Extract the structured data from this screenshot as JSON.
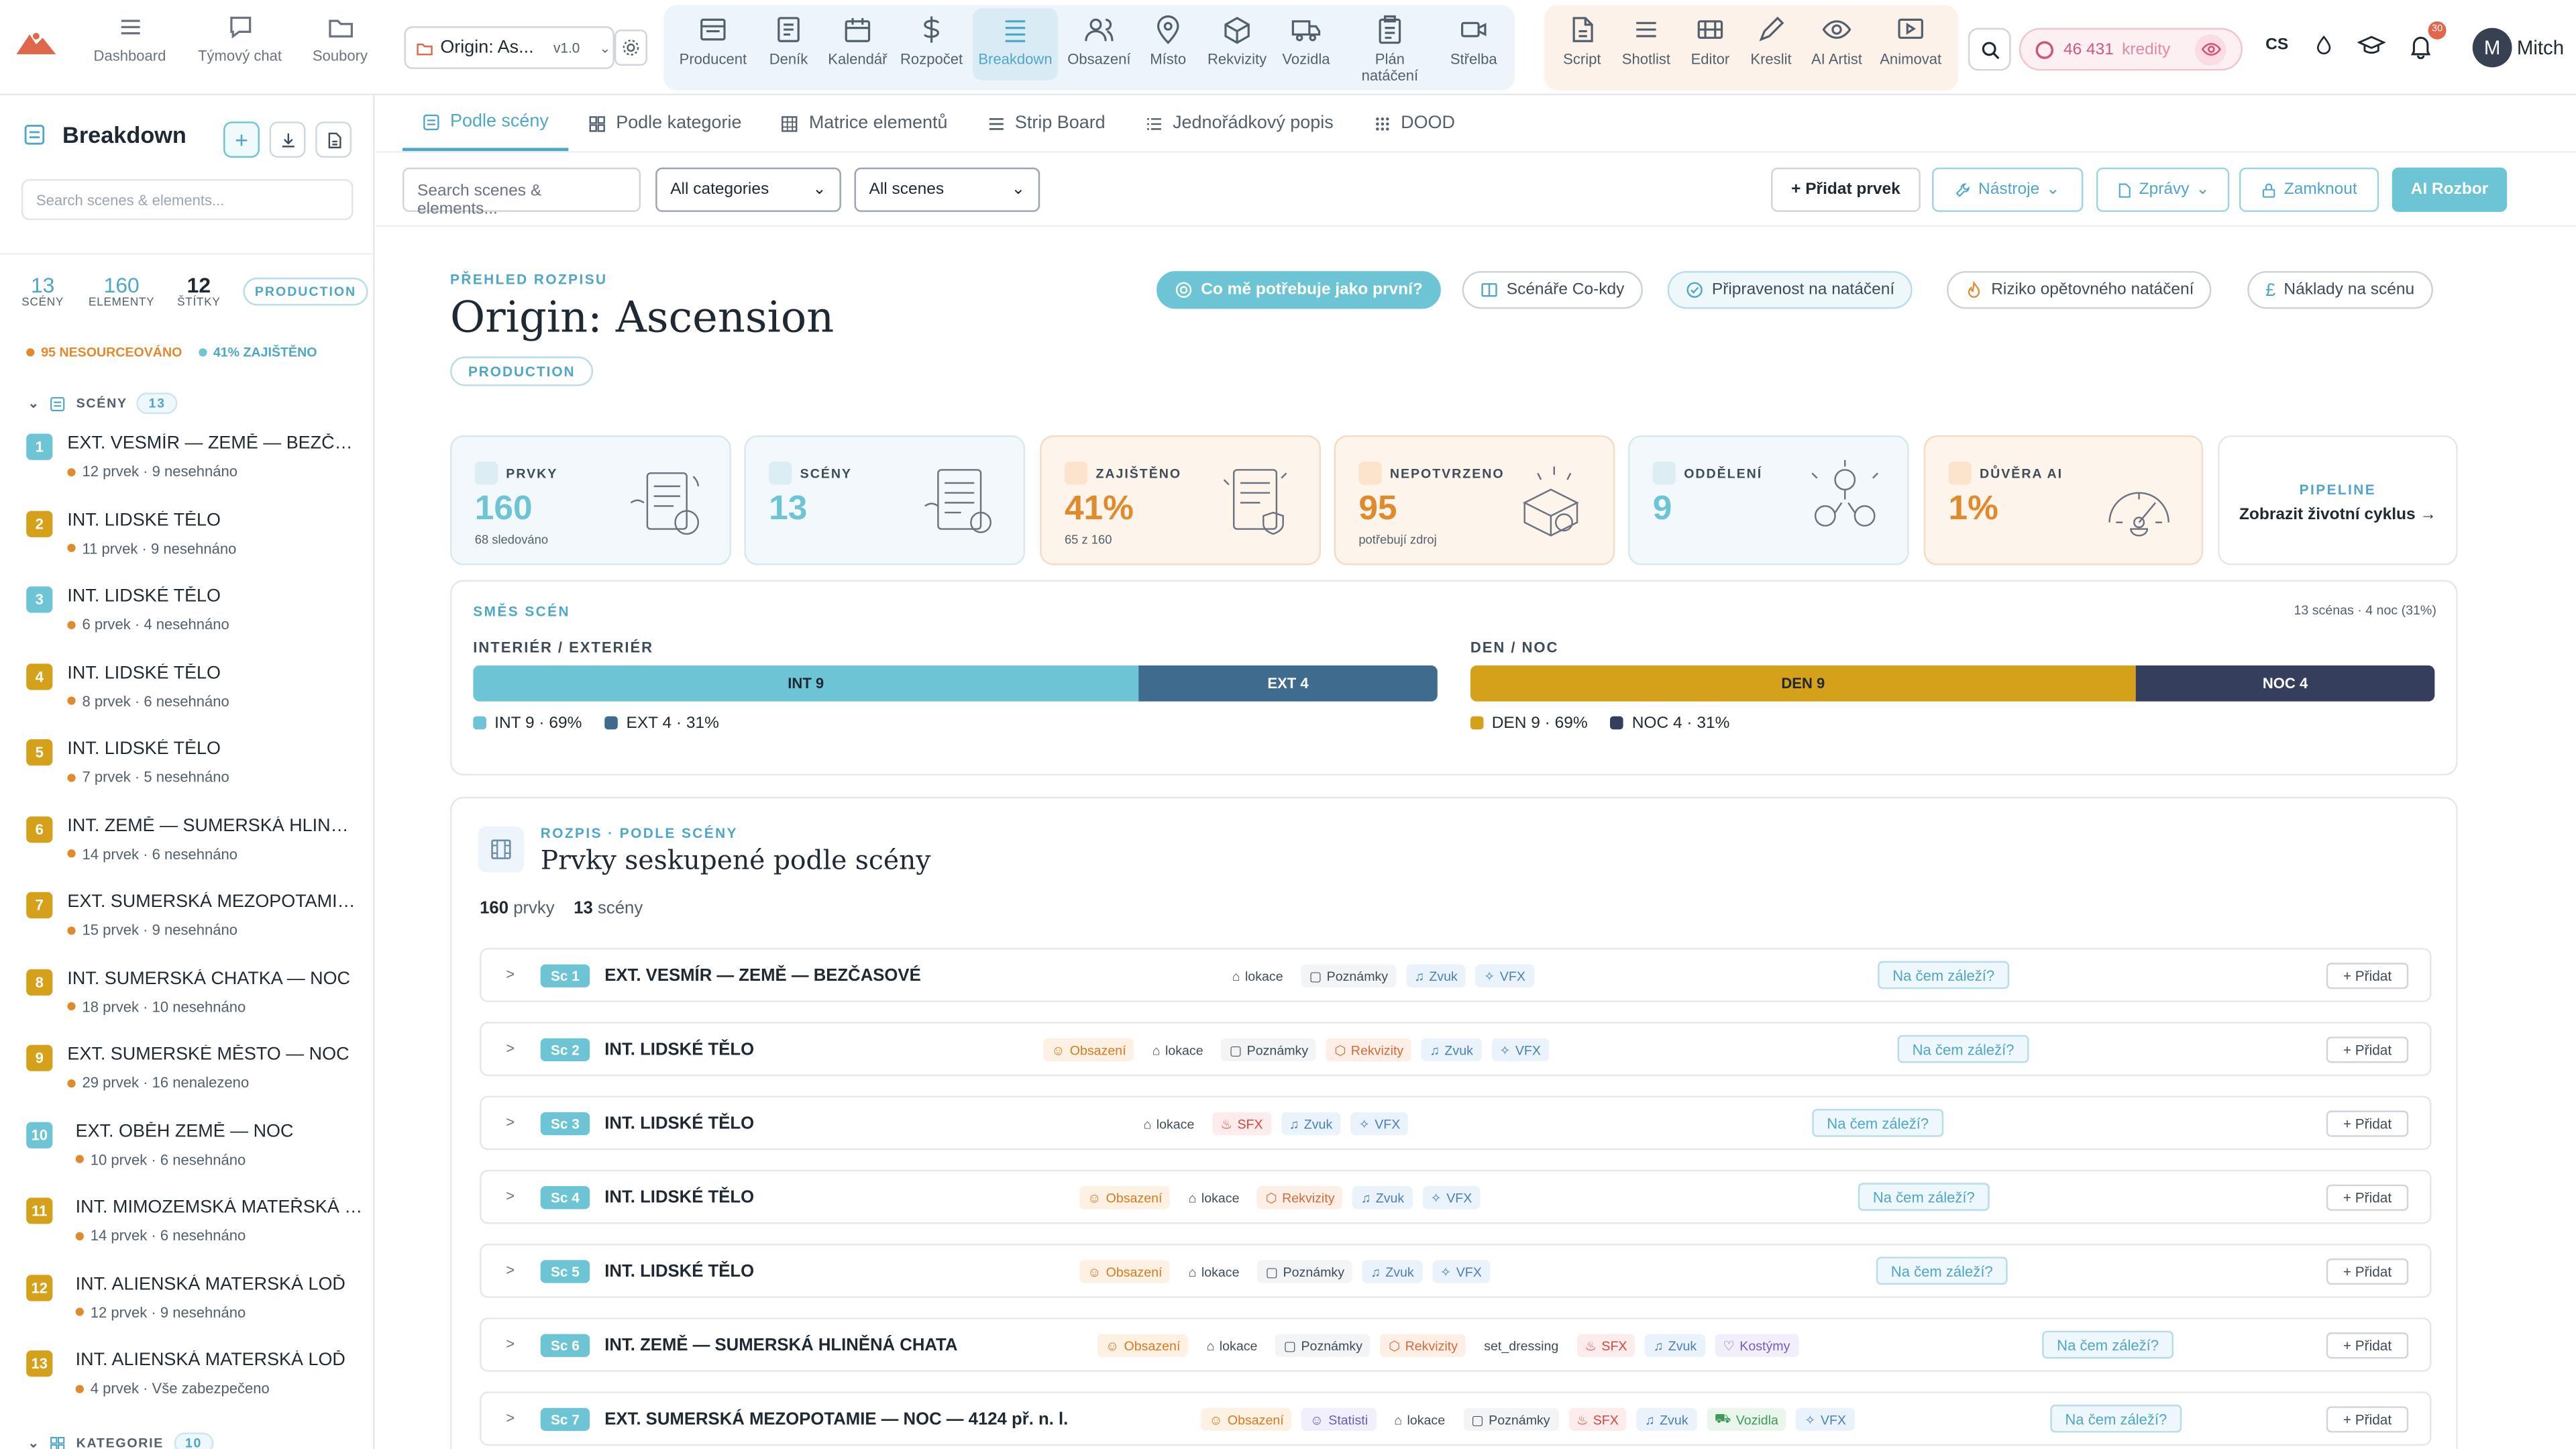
{
  "topnav": {
    "items": [
      {
        "label": "Dashboard",
        "icon": "menu-icon"
      },
      {
        "label": "Týmový chat",
        "icon": "chat-icon"
      },
      {
        "label": "Soubory",
        "icon": "folder-icon"
      }
    ],
    "project_name": "Origin: As...",
    "project_version": "v1.0",
    "tools": [
      {
        "label": "Producent",
        "icon": "browser-icon"
      },
      {
        "label": "Deník",
        "icon": "journal-icon"
      },
      {
        "label": "Kalendář",
        "icon": "calendar-icon"
      },
      {
        "label": "Rozpočet",
        "icon": "dollar-icon"
      },
      {
        "label": "Breakdown",
        "icon": "list-icon",
        "active": true
      },
      {
        "label": "Obsazení",
        "icon": "people-icon"
      },
      {
        "label": "Místo",
        "icon": "pin-icon"
      },
      {
        "label": "Rekvizity",
        "icon": "box-icon"
      },
      {
        "label": "Vozidla",
        "icon": "truck-icon"
      },
      {
        "label": "Plán natáčení",
        "icon": "clipboard-icon"
      },
      {
        "label": "Střelba",
        "icon": "camera-icon"
      }
    ],
    "creative_tools": [
      {
        "label": "Script",
        "icon": "script-icon"
      },
      {
        "label": "Shotlist",
        "icon": "lines-icon"
      },
      {
        "label": "Editor",
        "icon": "editor-icon"
      },
      {
        "label": "Kreslit",
        "icon": "pen-icon"
      },
      {
        "label": "AI Artist",
        "icon": "eye-icon"
      },
      {
        "label": "Animovat",
        "icon": "play-icon"
      }
    ],
    "credits_value": "46 431",
    "credits_label": "kredity",
    "language": "CS",
    "notifications_count": "30",
    "user_initial": "M",
    "user_name": "Mitch"
  },
  "sidebar": {
    "title": "Breakdown",
    "search_placeholder": "Search scenes & elements...",
    "stats": [
      {
        "value": "13",
        "label": "SCÉNY"
      },
      {
        "value": "160",
        "label": "ELEMENTY"
      },
      {
        "value": "12",
        "label": "ŠTÍTKY"
      }
    ],
    "phase": "PRODUCTION",
    "unsourced": "95 NESOURCEOVÁNO",
    "secured": "41% ZAJIŠTĚNO",
    "scenes_label": "SCÉNY",
    "scenes_count": "13",
    "categories_label": "KATEGORIE",
    "categories_count": "10",
    "scenes": [
      {
        "num": "1",
        "title": "EXT. VESMÍR — ZEMĚ — BEZČASOVÉ",
        "sub": "12 prvek · 9 nesehnáno",
        "color": "#6cc4d5"
      },
      {
        "num": "2",
        "title": "INT. LIDSKÉ TĚLO",
        "sub": "11 prvek · 9 nesehnáno",
        "color": "#d6a11a"
      },
      {
        "num": "3",
        "title": "INT. LIDSKÉ TĚLO",
        "sub": "6 prvek · 4 nesehnáno",
        "color": "#6cc4d5"
      },
      {
        "num": "4",
        "title": "INT. LIDSKÉ TĚLO",
        "sub": "8 prvek · 6 nesehnáno",
        "color": "#d6a11a"
      },
      {
        "num": "5",
        "title": "INT. LIDSKÉ TĚLO",
        "sub": "7 prvek · 5 nesehnáno",
        "color": "#d6a11a"
      },
      {
        "num": "6",
        "title": "INT. ZEMĚ — SUMERSKÁ HLINĚNÁ CHATA",
        "sub": "14 prvek · 6 nesehnáno",
        "color": "#d6a11a"
      },
      {
        "num": "7",
        "title": "EXT. SUMERSKÁ MEZOPOTAMIE — NOC",
        "sub": "15 prvek · 9 nesehnáno",
        "color": "#d6a11a"
      },
      {
        "num": "8",
        "title": "INT. SUMERSKÁ CHATKA — NOC",
        "sub": "18 prvek · 10 nesehnáno",
        "color": "#d6a11a"
      },
      {
        "num": "9",
        "title": "EXT. SUMERSKÉ MĚSTO — NOC",
        "sub": "29 prvek · 16 nenalezeno",
        "color": "#d6a11a"
      },
      {
        "num": "10",
        "title": "EXT. OBĚH ZEMĚ — NOC",
        "sub": "10 prvek · 6 nesehnáno",
        "color": "#6cc4d5"
      },
      {
        "num": "11",
        "title": "INT. MIMOZEMSKÁ MATEŘSKÁ LOĎ",
        "sub": "14 prvek · 6 nesehnáno",
        "color": "#d6a11a"
      },
      {
        "num": "12",
        "title": "INT. ALIENSKÁ MATERSKÁ LOĎ",
        "sub": "12 prvek · 9 nesehnáno",
        "color": "#d6a11a"
      },
      {
        "num": "13",
        "title": "INT. ALIENSKÁ MATERSKÁ LOĎ",
        "sub": "4 prvek · Vše zabezpečeno",
        "color": "#d6a11a"
      }
    ]
  },
  "tabs": [
    {
      "label": "Podle scény",
      "icon": "list-icon",
      "active": true
    },
    {
      "label": "Podle kategorie",
      "icon": "grid-icon"
    },
    {
      "label": "Matrice elementů",
      "icon": "table-icon"
    },
    {
      "label": "Strip Board",
      "icon": "strip-icon"
    },
    {
      "label": "Jednořádkový popis",
      "icon": "lines-icon"
    },
    {
      "label": "DOOD",
      "icon": "dots-icon"
    }
  ],
  "filters": {
    "search_placeholder": "Search scenes & elements...",
    "category": "All categories",
    "scenes": "All scenes"
  },
  "actions": {
    "add": "+ Přidat prvek",
    "tools": "Nástroje",
    "reports": "Zprávy",
    "lock": "Zamknout",
    "ai": "AI Rozbor"
  },
  "overview": {
    "kicker": "PŘEHLED ROZPISU",
    "title": "Origin: Ascension",
    "phase": "PRODUCTION",
    "quick": [
      {
        "label": "Co mě potřebuje jako první?",
        "icon": "target-icon"
      },
      {
        "label": "Scénáře Co-kdy",
        "icon": "columns-icon"
      },
      {
        "label": "Připravenost na natáčení",
        "icon": "check-circle-icon"
      },
      {
        "label": "Riziko opětovného natáčení",
        "icon": "flame-icon"
      },
      {
        "label": "Náklady na scénu",
        "icon": "pound-icon"
      }
    ]
  },
  "kpis": [
    {
      "label": "PRVKY",
      "value": "160",
      "sub": "68 sledováno",
      "tone": "blue",
      "icon": "people-icon"
    },
    {
      "label": "SCÉNY",
      "value": "13",
      "sub": "",
      "tone": "blue",
      "icon": "doc-icon"
    },
    {
      "label": "ZAJIŠTĚNO",
      "value": "41%",
      "sub": "65 z 160",
      "tone": "orange",
      "icon": "shield-icon"
    },
    {
      "label": "NEPOTVRZENO",
      "value": "95",
      "sub": "potřebují zdroj",
      "tone": "orange",
      "icon": "search-icon"
    },
    {
      "label": "ODDĚLENÍ",
      "value": "9",
      "sub": "",
      "tone": "blue",
      "icon": "layers-icon"
    },
    {
      "label": "DŮVĚRA AI",
      "value": "1%",
      "sub": "",
      "tone": "orange",
      "icon": "sparkle-icon"
    }
  ],
  "pipeline": {
    "kicker": "PIPELINE",
    "link": "Zobrazit životní cyklus →"
  },
  "mix": {
    "kicker": "SMĚS SCÉN",
    "meta": "13 scénas · 4 noc (31%)",
    "ie_label": "INTERIÉR / EXTERIÉR",
    "dn_label": "DEN / NOC",
    "ie": [
      {
        "label": "INT 9",
        "legend": "INT 9 · 69%",
        "fraction": 0.69,
        "color": "#6cc4d5"
      },
      {
        "label": "EXT 4",
        "legend": "EXT 4 · 31%",
        "fraction": 0.31,
        "color": "#3e6b8e"
      }
    ],
    "dn": [
      {
        "label": "DEN 9",
        "legend": "DEN 9 · 69%",
        "fraction": 0.69,
        "color": "#d6a11a"
      },
      {
        "label": "NOC 4",
        "legend": "NOC 4 · 31%",
        "fraction": 0.31,
        "color": "#353e5c"
      }
    ]
  },
  "breakdown": {
    "kicker": "ROZPIS · PODLE SCÉNY",
    "title": "Prvky seskupené podle scény",
    "count_elements": "160",
    "count_elements_label": "prvky",
    "count_scenes": "13",
    "count_scenes_label": "scény",
    "matter_label": "Na čem záleží?",
    "add_label": "+ Přidat",
    "rows": [
      {
        "sc": "Sc 1",
        "title": "EXT. VESMÍR — ZEMĚ — BEZČASOVÉ",
        "tags": [
          [
            "loc",
            "lokace"
          ],
          [
            "note",
            "Poznámky"
          ],
          [
            "sound",
            "Zvuk"
          ],
          [
            "vfx",
            "VFX"
          ]
        ]
      },
      {
        "sc": "Sc 2",
        "title": "INT. LIDSKÉ TĚLO",
        "tags": [
          [
            "cast",
            "Obsazení"
          ],
          [
            "loc",
            "lokace"
          ],
          [
            "note",
            "Poznámky"
          ],
          [
            "prop",
            "Rekvizity"
          ],
          [
            "sound",
            "Zvuk"
          ],
          [
            "vfx",
            "VFX"
          ]
        ]
      },
      {
        "sc": "Sc 3",
        "title": "INT. LIDSKÉ TĚLO",
        "tags": [
          [
            "loc",
            "lokace"
          ],
          [
            "sfx",
            "SFX"
          ],
          [
            "sound",
            "Zvuk"
          ],
          [
            "vfx",
            "VFX"
          ]
        ]
      },
      {
        "sc": "Sc 4",
        "title": "INT. LIDSKÉ TĚLO",
        "tags": [
          [
            "cast",
            "Obsazení"
          ],
          [
            "loc",
            "lokace"
          ],
          [
            "prop",
            "Rekvizity"
          ],
          [
            "sound",
            "Zvuk"
          ],
          [
            "vfx",
            "VFX"
          ]
        ]
      },
      {
        "sc": "Sc 5",
        "title": "INT. LIDSKÉ TĚLO",
        "tags": [
          [
            "cast",
            "Obsazení"
          ],
          [
            "loc",
            "lokace"
          ],
          [
            "note",
            "Poznámky"
          ],
          [
            "sound",
            "Zvuk"
          ],
          [
            "vfx",
            "VFX"
          ]
        ]
      },
      {
        "sc": "Sc 6",
        "title": "INT. ZEMĚ — SUMERSKÁ HLINĚNÁ CHATA",
        "tags": [
          [
            "cast",
            "Obsazení"
          ],
          [
            "loc",
            "lokace"
          ],
          [
            "note",
            "Poznámky"
          ],
          [
            "prop",
            "Rekvizity"
          ],
          [
            "set",
            "set_dressing"
          ],
          [
            "sfx",
            "SFX"
          ],
          [
            "sound",
            "Zvuk"
          ],
          [
            "cost",
            "Kostýmy"
          ]
        ]
      },
      {
        "sc": "Sc 7",
        "title": "EXT. SUMERSKÁ MEZOPOTAMIE — NOC — 4124 př. n. l.",
        "tags": [
          [
            "cast",
            "Obsazení"
          ],
          [
            "extra",
            "Statisti"
          ],
          [
            "loc",
            "lokace"
          ],
          [
            "note",
            "Poznámky"
          ],
          [
            "sfx",
            "SFX"
          ],
          [
            "sound",
            "Zvuk"
          ],
          [
            "veh",
            "Vozidla"
          ],
          [
            "vfx",
            "VFX"
          ]
        ]
      }
    ]
  }
}
